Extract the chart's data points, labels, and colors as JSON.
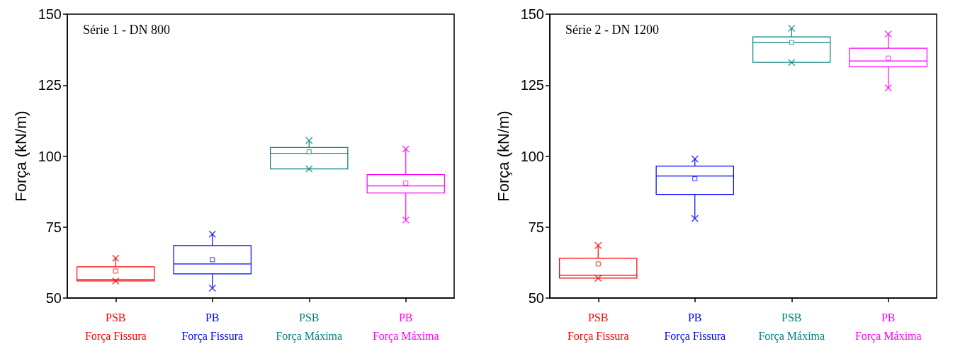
{
  "chart_data": [
    {
      "type": "box",
      "title": "Série 1 - DN 800",
      "ylabel": "Força (kN/m)",
      "categories": [
        "PSB\nForça Fissura",
        "PB\nForça Fissura",
        "PSB\nForça Máxima",
        "PB\nForça Máxima"
      ],
      "colors": [
        "#ff0000",
        "#0000ff",
        "#008080",
        "#ff00ff"
      ],
      "boxes": [
        {
          "low": 56,
          "q1": 56,
          "median": 56.5,
          "q3": 61,
          "high": 64,
          "mean": 59.5
        },
        {
          "low": 53.5,
          "q1": 58.5,
          "median": 62,
          "q3": 68.5,
          "high": 72.5,
          "mean": 63.5
        },
        {
          "low": 95.5,
          "q1": 95.5,
          "median": 101,
          "q3": 103,
          "high": 105.5,
          "mean": 101.5
        },
        {
          "low": 77.5,
          "q1": 87,
          "median": 89.5,
          "q3": 93.5,
          "high": 102.5,
          "mean": 90.5
        }
      ],
      "series": [
        {
          "type": "scatter",
          "marker": "cross",
          "x": [
            "PSB\nForça Fissura",
            "PSB\nForça Fissura",
            "PB\nForça Fissura",
            "PB\nForça Fissura",
            "PSB\nForça Máxima",
            "PSB\nForça Máxima",
            "PB\nForça Máxima",
            "PB\nForça Máxima"
          ],
          "values": [
            56,
            64,
            53.5,
            72.5,
            95.5,
            105.5,
            77.5,
            102.5
          ],
          "colors": [
            "#ff0000",
            "#ff0000",
            "#0000ff",
            "#0000ff",
            "#008080",
            "#008080",
            "#ff00ff",
            "#ff00ff"
          ]
        }
      ],
      "ylim": [
        50,
        150
      ],
      "yticks": [
        50,
        75,
        100,
        125,
        150
      ]
    },
    {
      "type": "box",
      "title": "Série 2 - DN 1200",
      "ylabel": "Força (kN/m)",
      "categories": [
        "PSB\nForça Fissura",
        "PB\nForça Fissura",
        "PSB\nForça Máxima",
        "PB\nForça Máxima"
      ],
      "colors": [
        "#ff0000",
        "#0000ff",
        "#008080",
        "#ff00ff"
      ],
      "boxes": [
        {
          "low": 57,
          "q1": 57,
          "median": 58,
          "q3": 64,
          "high": 68.5,
          "mean": 62
        },
        {
          "low": 78,
          "q1": 86.5,
          "median": 93,
          "q3": 96.5,
          "high": 99,
          "mean": 92
        },
        {
          "low": 133,
          "q1": 133,
          "median": 140,
          "q3": 142,
          "high": 145,
          "mean": 140
        },
        {
          "low": 124,
          "q1": 131.5,
          "median": 133.5,
          "q3": 138,
          "high": 143,
          "mean": 134.5
        }
      ],
      "series": [
        {
          "type": "scatter",
          "marker": "cross",
          "x": [
            "PSB\nForça Fissura",
            "PSB\nForça Fissura",
            "PB\nForça Fissura",
            "PB\nForça Fissura",
            "PSB\nForça Máxima",
            "PSB\nForça Máxima",
            "PB\nForça Máxima",
            "PB\nForça Máxima"
          ],
          "values": [
            57,
            68.5,
            78,
            99,
            133,
            145,
            124,
            143
          ],
          "colors": [
            "#ff0000",
            "#ff0000",
            "#0000ff",
            "#0000ff",
            "#008080",
            "#008080",
            "#ff00ff",
            "#ff00ff"
          ]
        }
      ],
      "ylim": [
        50,
        150
      ],
      "yticks": [
        50,
        75,
        100,
        125,
        150
      ]
    }
  ]
}
